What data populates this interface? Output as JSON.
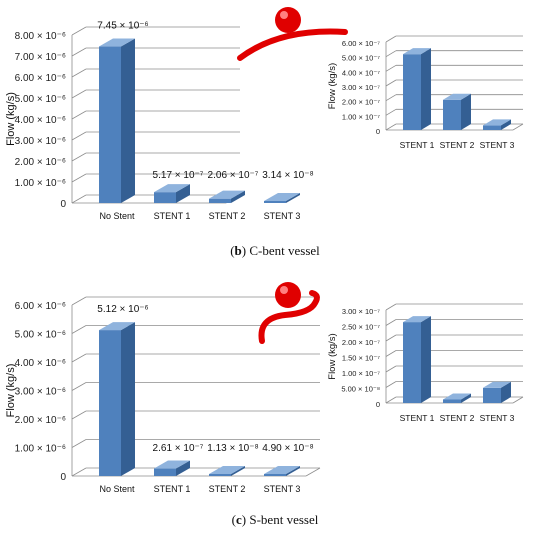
{
  "captions": [
    {
      "letter": "b",
      "text": "C-bent vessel"
    },
    {
      "letter": "c",
      "text": "S-bent vessel"
    }
  ],
  "colors": {
    "bar_front": "#4f81bd",
    "bar_side": "#345f93",
    "bar_top": "#8fb3dd",
    "grid": "#8c8c8c",
    "aneurysm": "#e00000"
  },
  "chart_data": [
    {
      "type": "bar",
      "panel": "b",
      "title": "",
      "ylabel": "Flow (kg/s)",
      "xlabel": "",
      "categories": [
        "No Stent",
        "STENT 1",
        "STENT 2",
        "STENT 3"
      ],
      "values": [
        7.45e-06,
        5.17e-07,
        2.06e-07,
        3.14e-08
      ],
      "data_labels": [
        "7.45 × 10⁻⁶",
        "5.17 × 10⁻⁷",
        "2.06 × 10⁻⁷",
        "3.14 × 10⁻⁸"
      ],
      "ylim": [
        0,
        8e-06
      ],
      "yticks": [
        0,
        1e-06,
        2e-06,
        3e-06,
        4e-06,
        5e-06,
        6e-06,
        7e-06,
        8e-06
      ],
      "ytick_labels": [
        "0",
        "1.00 × 10⁻⁶",
        "2.00 × 10⁻⁶",
        "3.00 × 10⁻⁶",
        "4.00 × 10⁻⁶",
        "5.00 × 10⁻⁶",
        "6.00 × 10⁻⁶",
        "7.00 × 10⁻⁶",
        "8.00 × 10⁻⁶"
      ],
      "grid": true,
      "inset": {
        "type": "bar",
        "ylabel": "Flow (kg/s)",
        "categories": [
          "STENT 1",
          "STENT 2",
          "STENT 3"
        ],
        "values": [
          5.17e-07,
          2.06e-07,
          3.14e-08
        ],
        "ylim": [
          0,
          6e-07
        ],
        "ytick_labels": [
          "0",
          "1.00 × 10⁻⁷",
          "2.00 × 10⁻⁷",
          "3.00 × 10⁻⁷",
          "4.00 × 10⁻⁷",
          "5.00 × 10⁻⁷",
          "6.00 × 10⁻⁷"
        ],
        "grid": true
      }
    },
    {
      "type": "bar",
      "panel": "c",
      "title": "",
      "ylabel": "Flow (kg/s)",
      "xlabel": "",
      "categories": [
        "No Stent",
        "STENT 1",
        "STENT 2",
        "STENT 3"
      ],
      "values": [
        5.12e-06,
        2.61e-07,
        1.13e-08,
        4.9e-08
      ],
      "data_labels": [
        "5.12 × 10⁻⁶",
        "2.61 × 10⁻⁷",
        "1.13 × 10⁻⁸",
        "4.90 × 10⁻⁸"
      ],
      "ylim": [
        0,
        6e-06
      ],
      "yticks": [
        0,
        1e-06,
        2e-06,
        3e-06,
        4e-06,
        5e-06,
        6e-06
      ],
      "ytick_labels": [
        "0",
        "1.00 × 10⁻⁶",
        "2.00 × 10⁻⁶",
        "3.00 × 10⁻⁶",
        "4.00 × 10⁻⁶",
        "5.00 × 10⁻⁶",
        "6.00 × 10⁻⁶"
      ],
      "grid": true,
      "inset": {
        "type": "bar",
        "ylabel": "Flow (kg/s)",
        "categories": [
          "STENT 1",
          "STENT 2",
          "STENT 3"
        ],
        "values": [
          2.61e-07,
          1.13e-08,
          4.9e-08
        ],
        "ylim": [
          0,
          3e-07
        ],
        "ytick_labels": [
          "0",
          "5.00 × 10⁻⁸",
          "1.00 × 10⁻⁷",
          "1.50 × 10⁻⁷",
          "2.00 × 10⁻⁷",
          "2.50 × 10⁻⁷",
          "3.00 × 10⁻⁷"
        ],
        "grid": true
      }
    }
  ]
}
